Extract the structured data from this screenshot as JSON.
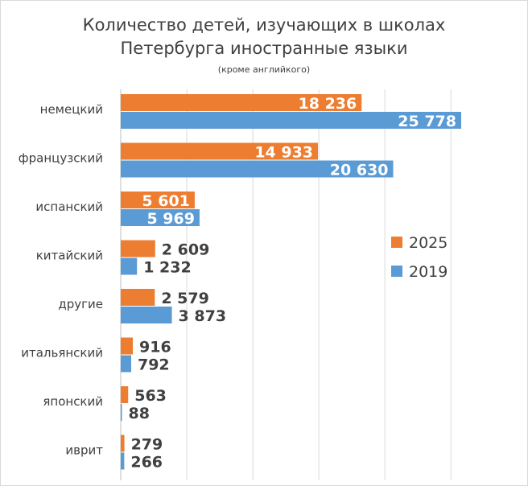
{
  "chart_data": {
    "type": "bar",
    "orientation": "horizontal",
    "title_lines": [
      "Количество детей, изучающих в школах",
      "Петербурга иностранные языки"
    ],
    "subtitle": "(кроме английкого)",
    "categories": [
      "немецкий",
      "французский",
      "испанский",
      "китайский",
      "другие",
      "итальянский",
      "японский",
      "иврит"
    ],
    "series": [
      {
        "name": "2025",
        "color": "#ed7d31",
        "values": [
          18236,
          14933,
          5601,
          2609,
          2579,
          916,
          563,
          279
        ],
        "labels": [
          "18 236",
          "14 933",
          "5 601",
          "2 609",
          "2 579",
          "916",
          "563",
          "279"
        ]
      },
      {
        "name": "2019",
        "color": "#5b9bd5",
        "values": [
          25778,
          20630,
          5969,
          1232,
          3873,
          792,
          88,
          266
        ],
        "labels": [
          "25 778",
          "20 630",
          "5 969",
          "1 232",
          "3 873",
          "792",
          "88",
          "266"
        ]
      }
    ],
    "xlim": [
      0,
      30000
    ],
    "gridlines": true,
    "legend_position": "right"
  }
}
